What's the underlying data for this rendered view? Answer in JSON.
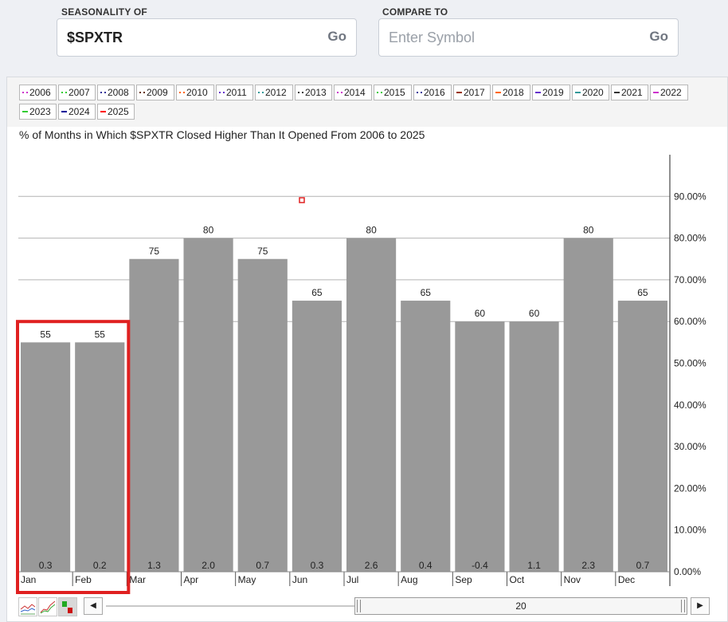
{
  "seasonality": {
    "label": "SEASONALITY OF",
    "value": "$SPXTR",
    "go": "Go"
  },
  "compare": {
    "label": "COMPARE TO",
    "placeholder": "Enter Symbol",
    "go": "Go"
  },
  "legend": [
    {
      "year": "2006",
      "color": "#cc33cc"
    },
    {
      "year": "2007",
      "color": "#33cc33"
    },
    {
      "year": "2008",
      "color": "#333399"
    },
    {
      "year": "2009",
      "color": "#663300"
    },
    {
      "year": "2010",
      "color": "#ff6600"
    },
    {
      "year": "2011",
      "color": "#6633cc"
    },
    {
      "year": "2012",
      "color": "#339999"
    },
    {
      "year": "2013",
      "color": "#333333"
    },
    {
      "year": "2014",
      "color": "#cc33cc"
    },
    {
      "year": "2015",
      "color": "#33cc33"
    },
    {
      "year": "2016",
      "color": "#333399"
    },
    {
      "year": "2017",
      "color": "#993300"
    },
    {
      "year": "2018",
      "color": "#ff6600"
    },
    {
      "year": "2019",
      "color": "#6633cc"
    },
    {
      "year": "2020",
      "color": "#339999"
    },
    {
      "year": "2021",
      "color": "#333333"
    },
    {
      "year": "2022",
      "color": "#cc33cc"
    },
    {
      "year": "2023",
      "color": "#33cc33"
    },
    {
      "year": "2024",
      "color": "#000099"
    },
    {
      "year": "2025",
      "color": "#ff0000"
    }
  ],
  "chart_data": {
    "type": "bar",
    "title": "% of Months in Which $SPXTR Closed Higher Than It Opened From 2006 to 2025",
    "categories": [
      "Jan",
      "Feb",
      "Mar",
      "Apr",
      "May",
      "Jun",
      "Jul",
      "Aug",
      "Sep",
      "Oct",
      "Nov",
      "Dec"
    ],
    "values": [
      55,
      55,
      75,
      80,
      75,
      65,
      80,
      65,
      60,
      60,
      80,
      65
    ],
    "bottom_labels": [
      "0.3",
      "0.2",
      "1.3",
      "2.0",
      "0.7",
      "0.3",
      "2.6",
      "0.4",
      "-0.4",
      "1.1",
      "2.3",
      "0.7"
    ],
    "ylim": [
      0,
      100
    ],
    "yticks": [
      {
        "v": 0,
        "label": "0.00%"
      },
      {
        "v": 10,
        "label": "10.00%"
      },
      {
        "v": 20,
        "label": "20.00%"
      },
      {
        "v": 30,
        "label": "30.00%"
      },
      {
        "v": 40,
        "label": "40.00%"
      },
      {
        "v": 50,
        "label": "50.00%"
      },
      {
        "v": 60,
        "label": "60.00%"
      },
      {
        "v": 70,
        "label": "70.00%"
      },
      {
        "v": 80,
        "label": "80.00%"
      },
      {
        "v": 90,
        "label": "90.00%"
      }
    ],
    "gridlines": [
      60,
      70,
      80,
      90
    ],
    "bar_color": "#999999",
    "highlight_categories": [
      "Jan",
      "Feb"
    ],
    "highlight_color": "#e02020",
    "y_axis_position": "right"
  },
  "scrollbar": {
    "value": "20"
  }
}
